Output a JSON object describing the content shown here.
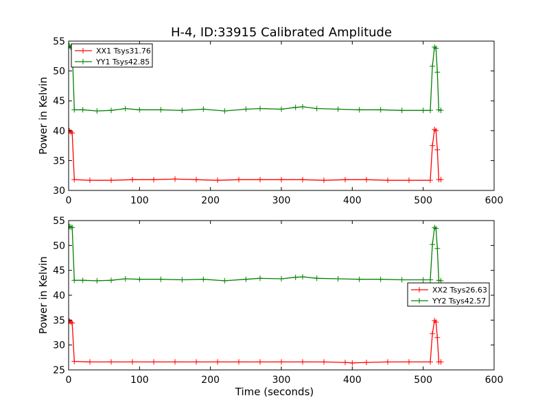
{
  "figure": {
    "title": "H-4, ID:33915 Calibrated Amplitude"
  },
  "chart_data": [
    {
      "type": "line",
      "title": "H-4, ID:33915 Calibrated Amplitude",
      "xlabel": "",
      "ylabel": "Power in Kelvin",
      "xlim": [
        0,
        600
      ],
      "ylim": [
        30,
        55
      ],
      "xticks": [
        0,
        100,
        200,
        300,
        400,
        500,
        600
      ],
      "yticks": [
        30,
        35,
        40,
        45,
        50,
        55
      ],
      "grid": false,
      "legend_position": "top-left",
      "series": [
        {
          "name": "XX1 Tsys31.76",
          "color": "#ff0000",
          "marker": "+",
          "x": [
            1,
            3,
            5,
            8,
            30,
            60,
            90,
            120,
            150,
            180,
            210,
            240,
            270,
            300,
            330,
            360,
            390,
            420,
            450,
            480,
            510,
            513,
            516,
            518,
            520,
            522,
            525
          ],
          "y": [
            40.0,
            39.8,
            39.6,
            31.8,
            31.7,
            31.7,
            31.8,
            31.8,
            31.9,
            31.8,
            31.7,
            31.8,
            31.8,
            31.8,
            31.8,
            31.7,
            31.8,
            31.8,
            31.7,
            31.7,
            31.7,
            37.5,
            40.2,
            40.0,
            36.8,
            31.8,
            31.8
          ]
        },
        {
          "name": "YY1 Tsys42.85",
          "color": "#008000",
          "marker": "+",
          "x": [
            1,
            3,
            5,
            8,
            20,
            40,
            60,
            80,
            100,
            130,
            160,
            190,
            220,
            250,
            270,
            300,
            320,
            330,
            350,
            380,
            410,
            440,
            470,
            500,
            510,
            513,
            516,
            518,
            520,
            522,
            525
          ],
          "y": [
            54.2,
            54.0,
            53.9,
            43.5,
            43.5,
            43.3,
            43.4,
            43.7,
            43.5,
            43.5,
            43.4,
            43.6,
            43.3,
            43.6,
            43.7,
            43.6,
            43.9,
            44.0,
            43.7,
            43.6,
            43.5,
            43.5,
            43.4,
            43.4,
            43.4,
            50.8,
            54.0,
            53.8,
            49.8,
            43.5,
            43.4
          ]
        }
      ]
    },
    {
      "type": "line",
      "title": "",
      "xlabel": "Time (seconds)",
      "ylabel": "Power in Kelvin",
      "xlim": [
        0,
        600
      ],
      "ylim": [
        25,
        55
      ],
      "xticks": [
        0,
        100,
        200,
        300,
        400,
        500,
        600
      ],
      "yticks": [
        25,
        30,
        35,
        40,
        45,
        50,
        55
      ],
      "grid": false,
      "legend_position": "right",
      "series": [
        {
          "name": "XX2 Tsys26.63",
          "color": "#ff0000",
          "marker": "+",
          "x": [
            1,
            3,
            5,
            8,
            30,
            60,
            90,
            120,
            150,
            180,
            210,
            240,
            270,
            300,
            330,
            360,
            390,
            400,
            420,
            450,
            480,
            510,
            513,
            516,
            518,
            520,
            522,
            525
          ],
          "y": [
            34.8,
            34.6,
            34.4,
            26.7,
            26.6,
            26.6,
            26.6,
            26.6,
            26.6,
            26.6,
            26.6,
            26.6,
            26.6,
            26.6,
            26.6,
            26.6,
            26.5,
            26.4,
            26.5,
            26.6,
            26.6,
            26.6,
            32.3,
            34.9,
            34.6,
            31.5,
            26.6,
            26.6
          ]
        },
        {
          "name": "YY2 Tsys42.57",
          "color": "#008000",
          "marker": "+",
          "x": [
            1,
            3,
            5,
            8,
            20,
            40,
            60,
            80,
            100,
            130,
            160,
            190,
            220,
            250,
            270,
            300,
            320,
            330,
            350,
            380,
            410,
            440,
            470,
            500,
            510,
            513,
            516,
            518,
            520,
            522,
            525
          ],
          "y": [
            53.8,
            53.7,
            53.6,
            43.0,
            43.0,
            42.9,
            43.0,
            43.3,
            43.2,
            43.2,
            43.1,
            43.2,
            42.9,
            43.2,
            43.4,
            43.3,
            43.6,
            43.7,
            43.4,
            43.3,
            43.2,
            43.2,
            43.1,
            43.1,
            43.1,
            50.2,
            53.6,
            53.4,
            49.4,
            43.0,
            42.9
          ]
        }
      ]
    }
  ]
}
